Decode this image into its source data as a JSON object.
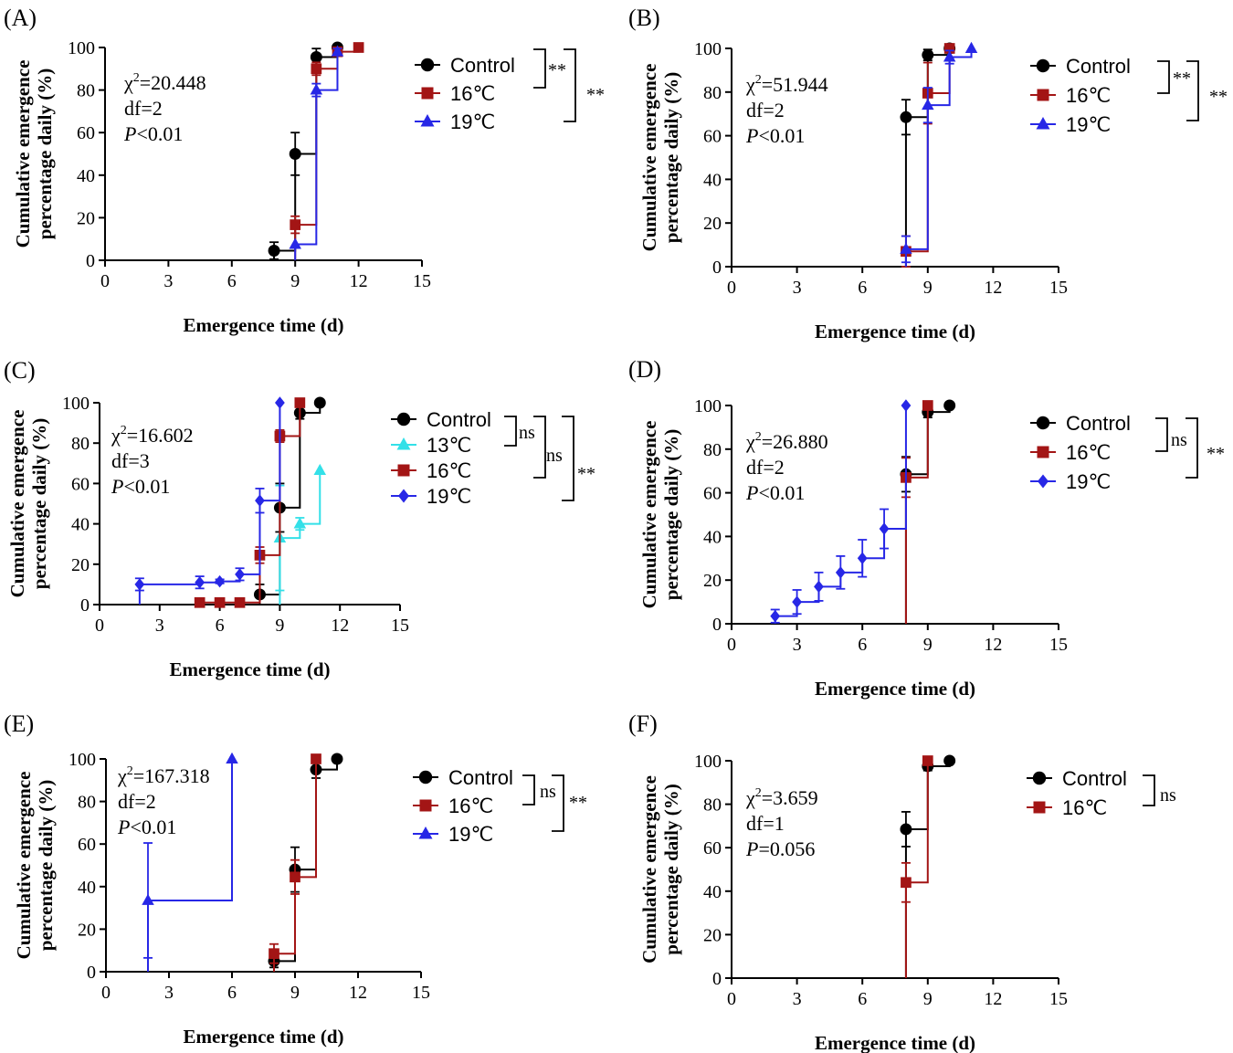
{
  "chart_data": [
    {
      "panel": "(A)",
      "type": "line",
      "step": true,
      "xlabel": "Emergence time (d)",
      "ylabel": "Cumulative emergence percentage daily (%)",
      "xlim": [
        0,
        15
      ],
      "ylim": [
        0,
        100
      ],
      "xticks": [
        0,
        3,
        6,
        9,
        12,
        15
      ],
      "yticks": [
        0,
        20,
        40,
        60,
        80,
        100
      ],
      "stats": {
        "chi": "20.448",
        "df": "df=2",
        "p": "<0.01"
      },
      "series": [
        {
          "name": "Control",
          "color": "#000000",
          "marker": "circle",
          "x": [
            8,
            9,
            10,
            11
          ],
          "y": [
            4.5,
            50,
            95.5,
            100
          ],
          "err": [
            4,
            10,
            4,
            0
          ]
        },
        {
          "name": "16℃",
          "color": "#a31515",
          "marker": "square",
          "x": [
            9,
            10,
            11,
            12
          ],
          "y": [
            16.7,
            90,
            98,
            100
          ],
          "err": [
            4,
            3,
            1.5,
            0
          ]
        },
        {
          "name": "19℃",
          "color": "#2727e6",
          "marker": "triangle",
          "x": [
            9,
            10,
            11
          ],
          "y": [
            7.5,
            80,
            98
          ],
          "err": [
            0,
            3,
            1.5
          ]
        }
      ],
      "significance": [
        {
          "label": "**"
        },
        {
          "label": "**"
        }
      ]
    },
    {
      "panel": "(B)",
      "type": "line",
      "step": true,
      "xlabel": "Emergence time (d)",
      "ylabel": "Cumulative emergence percentage daily (%)",
      "xlim": [
        0,
        15
      ],
      "ylim": [
        0,
        100
      ],
      "xticks": [
        0,
        3,
        6,
        9,
        12,
        15
      ],
      "yticks": [
        0,
        20,
        40,
        60,
        80,
        100
      ],
      "stats": {
        "chi": "51.944",
        "df": "df=2",
        "p": "<0.01"
      },
      "series": [
        {
          "name": "Control",
          "color": "#000000",
          "marker": "circle",
          "x": [
            8,
            9,
            10
          ],
          "y": [
            68.5,
            97,
            100
          ],
          "err": [
            8,
            2.5,
            0
          ]
        },
        {
          "name": "16℃",
          "color": "#a31515",
          "marker": "square",
          "x": [
            8,
            9,
            10
          ],
          "y": [
            7,
            79.5,
            100
          ],
          "err": [
            7,
            14,
            0
          ]
        },
        {
          "name": "19℃",
          "color": "#2727e6",
          "marker": "triangle",
          "x": [
            8,
            9,
            10,
            11
          ],
          "y": [
            8,
            74,
            96,
            100
          ],
          "err": [
            6,
            8,
            3,
            0
          ]
        }
      ],
      "significance": [
        {
          "label": "**"
        },
        {
          "label": "**"
        }
      ]
    },
    {
      "panel": "(C)",
      "type": "line",
      "step": true,
      "xlabel": "Emergence time (d)",
      "ylabel": "Cumulative emergence percentage daily (%)",
      "xlim": [
        0,
        15
      ],
      "ylim": [
        0,
        100
      ],
      "xticks": [
        0,
        3,
        6,
        9,
        12,
        15
      ],
      "yticks": [
        0,
        20,
        40,
        60,
        80,
        100
      ],
      "stats": {
        "chi": "16.602",
        "df": "df=3",
        "p": "<0.01"
      },
      "series": [
        {
          "name": "Control",
          "color": "#000000",
          "marker": "circle",
          "x": [
            8,
            9,
            10,
            11
          ],
          "y": [
            5,
            48,
            95,
            100
          ],
          "err": [
            5,
            12,
            3,
            0
          ]
        },
        {
          "name": "13℃",
          "color": "#33e0e8",
          "marker": "triangle",
          "x": [
            9,
            10,
            11
          ],
          "y": [
            33,
            40,
            66.5
          ],
          "err": [
            26,
            3,
            0
          ]
        },
        {
          "name": "16℃",
          "color": "#a31515",
          "marker": "square",
          "x": [
            5,
            6,
            7,
            8,
            9,
            10
          ],
          "y": [
            1,
            1,
            1,
            24.5,
            83.5,
            100
          ],
          "err": [
            1,
            1,
            1,
            4,
            3,
            0
          ]
        },
        {
          "name": "19℃",
          "color": "#2727e6",
          "marker": "diamond",
          "x": [
            2,
            5,
            6,
            7,
            8,
            9
          ],
          "y": [
            10,
            11,
            11.5,
            15,
            51.5,
            100
          ],
          "err": [
            3,
            3,
            1,
            3,
            6,
            0
          ]
        }
      ],
      "significance": [
        {
          "label": "ns"
        },
        {
          "label": "ns"
        },
        {
          "label": "**"
        }
      ]
    },
    {
      "panel": "(D)",
      "type": "line",
      "step": true,
      "xlabel": "Emergence time (d)",
      "ylabel": "Cumulative emergence percentage daily (%)",
      "xlim": [
        0,
        15
      ],
      "ylim": [
        0,
        100
      ],
      "xticks": [
        0,
        3,
        6,
        9,
        12,
        15
      ],
      "yticks": [
        0,
        20,
        40,
        60,
        80,
        100
      ],
      "stats": {
        "chi": "26.880",
        "df": "df=2",
        "p": "<0.01"
      },
      "series": [
        {
          "name": "Control",
          "color": "#000000",
          "marker": "circle",
          "x": [
            8,
            9,
            10
          ],
          "y": [
            68.5,
            97,
            100
          ],
          "err": [
            8,
            2.5,
            0
          ]
        },
        {
          "name": "16℃",
          "color": "#a31515",
          "marker": "square",
          "x": [
            8,
            9
          ],
          "y": [
            67,
            100
          ],
          "err": [
            9,
            0
          ]
        },
        {
          "name": "19℃",
          "color": "#2727e6",
          "marker": "diamond",
          "x": [
            2,
            3,
            4,
            5,
            6,
            7,
            8
          ],
          "y": [
            3.5,
            10,
            17,
            23.5,
            30,
            43.5,
            100
          ],
          "err": [
            3,
            5.5,
            6.5,
            7.5,
            8.5,
            9,
            0
          ]
        }
      ],
      "significance": [
        {
          "label": "ns"
        },
        {
          "label": "**"
        }
      ]
    },
    {
      "panel": "(E)",
      "type": "line",
      "step": true,
      "xlabel": "Emergence time (d)",
      "ylabel": "Cumulative emergence percentage daily (%)",
      "xlim": [
        0,
        15
      ],
      "ylim": [
        0,
        100
      ],
      "xticks": [
        0,
        3,
        6,
        9,
        12,
        15
      ],
      "yticks": [
        0,
        20,
        40,
        60,
        80,
        100
      ],
      "stats": {
        "chi": "167.318",
        "df": "df=2",
        "p": "<0.01"
      },
      "series": [
        {
          "name": "Control",
          "color": "#000000",
          "marker": "circle",
          "x": [
            8,
            9,
            10,
            11
          ],
          "y": [
            5,
            48,
            95,
            100
          ],
          "err": [
            3,
            10.5,
            4,
            0
          ]
        },
        {
          "name": "16℃",
          "color": "#a31515",
          "marker": "square",
          "x": [
            8,
            9,
            10
          ],
          "y": [
            8.5,
            44.5,
            100
          ],
          "err": [
            4.5,
            8,
            0
          ]
        },
        {
          "name": "19℃",
          "color": "#2727e6",
          "marker": "triangle",
          "x": [
            2,
            6
          ],
          "y": [
            33.5,
            100
          ],
          "err": [
            27,
            0
          ]
        }
      ],
      "significance": [
        {
          "label": "ns"
        },
        {
          "label": "**"
        }
      ]
    },
    {
      "panel": "(F)",
      "type": "line",
      "step": true,
      "xlabel": "Emergence time (d)",
      "ylabel": "Cumulative emergence percentage daily (%)",
      "xlim": [
        0,
        15
      ],
      "ylim": [
        0,
        100
      ],
      "xticks": [
        0,
        3,
        6,
        9,
        12,
        15
      ],
      "yticks": [
        0,
        20,
        40,
        60,
        80,
        100
      ],
      "stats": {
        "chi": "3.659",
        "df": "df=1",
        "p": "=0.056"
      },
      "series": [
        {
          "name": "Control",
          "color": "#000000",
          "marker": "circle",
          "x": [
            8,
            9,
            10
          ],
          "y": [
            68.5,
            97.5,
            100
          ],
          "err": [
            8,
            2,
            0
          ]
        },
        {
          "name": "16℃",
          "color": "#a31515",
          "marker": "square",
          "x": [
            8,
            9
          ],
          "y": [
            44,
            100
          ],
          "err": [
            9,
            0
          ]
        }
      ],
      "significance": [
        {
          "label": "ns"
        }
      ]
    }
  ]
}
